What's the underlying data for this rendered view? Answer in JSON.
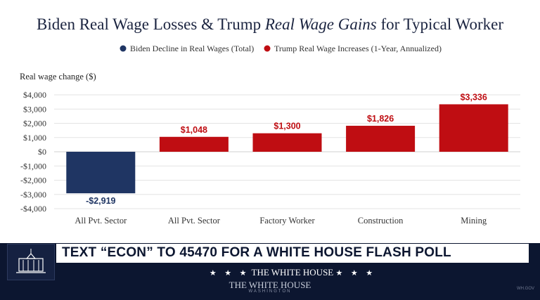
{
  "chart_data": {
    "type": "bar",
    "title_prefix": "Biden Real Wage Losses & Trump ",
    "title_emphasis": "Real Wage Gains",
    "title_suffix": " for Typical Worker",
    "legend": [
      {
        "label": "Biden Decline in Real Wages (Total)",
        "color": "#1f3563"
      },
      {
        "label": "Trump Real Wage Increases (1-Year, Annualized)",
        "color": "#bf0d12"
      }
    ],
    "ylabel": "Real wage change ($)",
    "ylim": [
      -4000,
      4000
    ],
    "yticks": [
      4000,
      3000,
      2000,
      1000,
      0,
      -1000,
      -2000,
      -3000,
      -4000
    ],
    "ytick_labels": [
      "$4,000",
      "$3,000",
      "$2,000",
      "$1,000",
      "$0",
      "-$1,000",
      "-$2,000",
      "-$3,000",
      "-$4,000"
    ],
    "categories": [
      "All Pvt. Sector",
      "All Pvt. Sector",
      "Factory Worker",
      "Construction",
      "Mining"
    ],
    "values": [
      -2919,
      1048,
      1300,
      1826,
      3336
    ],
    "data_labels": [
      "-$2,919",
      "$1,048",
      "$1,300",
      "$1,826",
      "$3,336"
    ],
    "series_index": [
      0,
      1,
      1,
      1,
      1
    ]
  },
  "banner": {
    "ticker": "TEXT “ECON” TO 45470 FOR A WHITE HOUSE FLASH POLL",
    "stars": "★ ★ ★",
    "org": "THE WHITE HOUSE",
    "sub": "THE WHITE HOUSE",
    "sub2": "WASHINGTON",
    "corner": "WH.GOV"
  }
}
